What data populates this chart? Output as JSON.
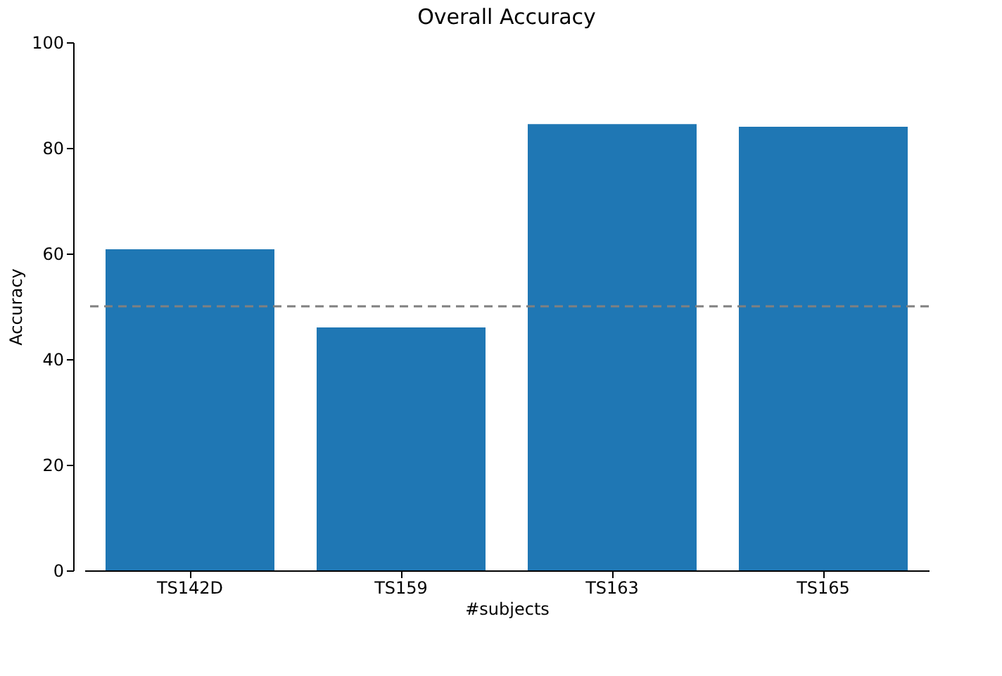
{
  "chart_data": {
    "type": "bar",
    "title": "Overall Accuracy",
    "xlabel": "#subjects",
    "ylabel": "Accuracy",
    "categories": [
      "TS142D",
      "TS159",
      "TS163",
      "TS165"
    ],
    "values": [
      60.8,
      46.0,
      84.5,
      84.0
    ],
    "color": "#1f77b4",
    "ylim": [
      0,
      100
    ],
    "yticks": [
      0,
      20,
      40,
      60,
      80,
      100
    ],
    "grid": false,
    "ref_lines": [
      {
        "axis": "y",
        "value": 50,
        "color": "#808080",
        "line_style": "dashed"
      }
    ]
  }
}
